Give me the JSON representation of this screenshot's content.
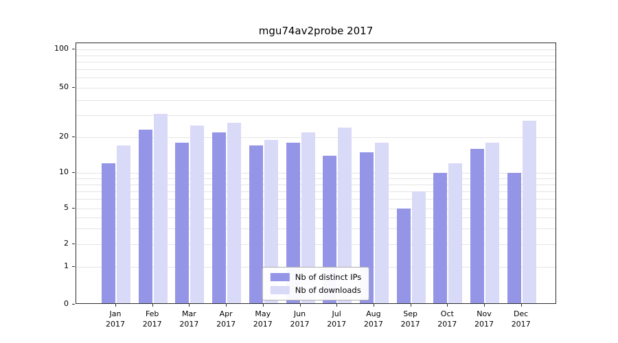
{
  "chart_data": {
    "type": "bar",
    "title": "mgu74av2probe 2017",
    "categories": [
      "Jan 2017",
      "Feb 2017",
      "Mar 2017",
      "Apr 2017",
      "May 2017",
      "Jun 2017",
      "Jul 2017",
      "Aug 2017",
      "Sep 2017",
      "Oct 2017",
      "Nov 2017",
      "Dec 2017"
    ],
    "series": [
      {
        "name": "Nb of distinct IPs",
        "color": "#9595e8",
        "values": [
          12,
          23,
          18,
          22,
          17,
          18,
          14,
          15,
          5,
          10,
          16,
          10
        ]
      },
      {
        "name": "Nb of downloads",
        "color": "#d9d9f8",
        "values": [
          17,
          31,
          25,
          26,
          19,
          22,
          24,
          18,
          7,
          12,
          18,
          27
        ]
      }
    ],
    "yscale": "symlog",
    "yticks": [
      0,
      1,
      2,
      5,
      10,
      20,
      50,
      100
    ],
    "ylim": [
      0,
      100
    ],
    "xlabel": "",
    "ylabel": "",
    "grid": "horizontal",
    "legend_position": "bottom-center",
    "colors": {
      "grid": "#e4e4e4",
      "spine": "#2b2b2b",
      "background": "#ffffff"
    }
  }
}
